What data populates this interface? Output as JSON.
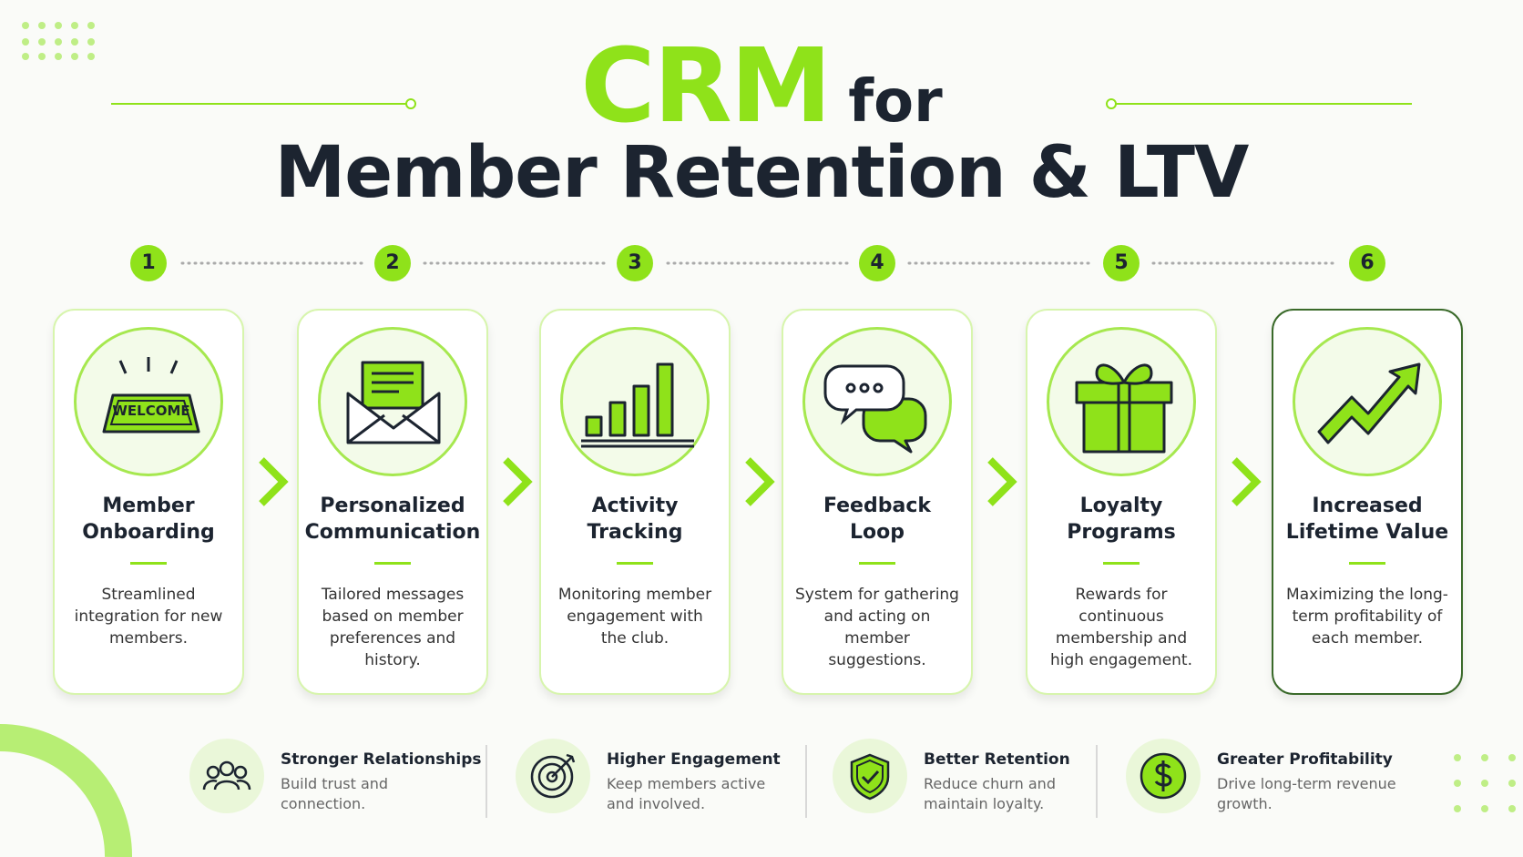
{
  "header": {
    "highlight": "CRM",
    "connector": "for",
    "subtitle": "Member Retention & LTV"
  },
  "steps": [
    {
      "number": "1",
      "title": [
        "Member",
        "Onboarding"
      ],
      "description": "Streamlined integration for new members.",
      "icon_text": "WELCOME"
    },
    {
      "number": "2",
      "title": [
        "Personalized",
        "Communication"
      ],
      "description": "Tailored messages based on member preferences and history."
    },
    {
      "number": "3",
      "title": [
        "Activity",
        "Tracking"
      ],
      "description": "Monitoring member engagement with the club."
    },
    {
      "number": "4",
      "title": [
        "Feedback",
        "Loop"
      ],
      "description": "System for gathering and acting on member suggestions."
    },
    {
      "number": "5",
      "title": [
        "Loyalty",
        "Programs"
      ],
      "description": "Rewards for continuous membership and high engagement."
    },
    {
      "number": "6",
      "title": [
        "Increased",
        "Lifetime Value"
      ],
      "description": "Maximizing the long-term profitability of each member."
    }
  ],
  "benefits": [
    {
      "title": "Stronger Relationships",
      "description": "Build trust and connection."
    },
    {
      "title": "Higher Engagement",
      "description": "Keep members active and involved."
    },
    {
      "title": "Better Retention",
      "description": "Reduce churn and maintain loyalty."
    },
    {
      "title": "Greater Profitability",
      "description": "Drive long-term revenue growth."
    }
  ]
}
